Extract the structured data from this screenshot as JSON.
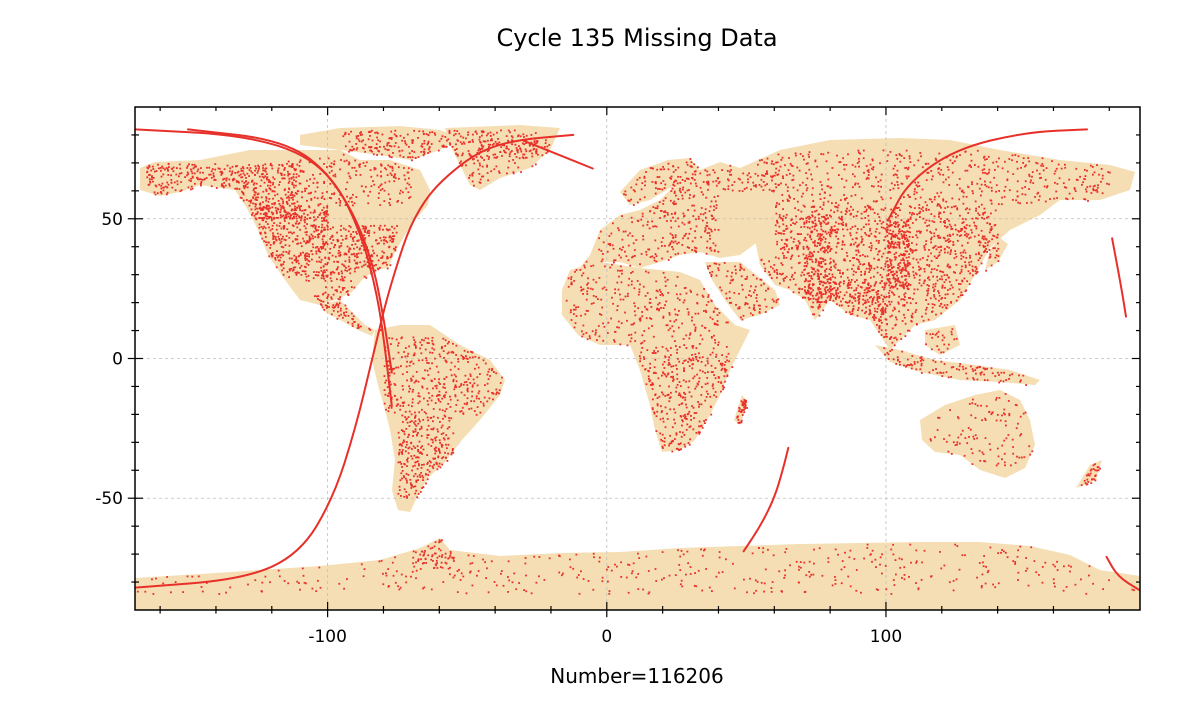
{
  "title": "Cycle 135 Missing Data",
  "footer": "Number=116206",
  "colors": {
    "land": "#f5deb3",
    "missing": "#e8302a",
    "grid": "#bdbdbd",
    "frame": "#000000"
  },
  "chart_data": {
    "type": "scatter",
    "projection": "equirectangular",
    "xlim": [
      -169,
      191
    ],
    "ylim": [
      -90,
      90
    ],
    "x_ticks": [
      -100,
      0,
      100
    ],
    "y_ticks": [
      50,
      0,
      -50
    ],
    "x_tick_labels": [
      "-100",
      "0",
      "100"
    ],
    "y_tick_labels": [
      "50",
      "0",
      "-50"
    ],
    "grid": true,
    "background_layer": "land",
    "series": [
      {
        "kind": "dense-regions",
        "regions": [
          {
            "lon": [
              -165,
              -110
            ],
            "lat": [
              50,
              70
            ],
            "n": 500
          },
          {
            "lon": [
              -125,
              -100
            ],
            "lat": [
              28,
              55
            ],
            "n": 420
          },
          {
            "lon": [
              -100,
              -75
            ],
            "lat": [
              28,
              48
            ],
            "n": 260
          },
          {
            "lon": [
              -115,
              -70
            ],
            "lat": [
              55,
              72
            ],
            "n": 200
          },
          {
            "lon": [
              -95,
              -25
            ],
            "lat": [
              72,
              82
            ],
            "n": 300
          },
          {
            "lon": [
              -55,
              -20
            ],
            "lat": [
              62,
              80
            ],
            "n": 120
          },
          {
            "lon": [
              -105,
              -80
            ],
            "lat": [
              10,
              26
            ],
            "n": 90
          },
          {
            "lon": [
              -80,
              -36
            ],
            "lat": [
              -20,
              8
            ],
            "n": 360
          },
          {
            "lon": [
              -75,
              -55
            ],
            "lat": [
              -50,
              -20
            ],
            "n": 260
          },
          {
            "lon": [
              -15,
              40
            ],
            "lat": [
              5,
              36
            ],
            "n": 300
          },
          {
            "lon": [
              10,
              45
            ],
            "lat": [
              -34,
              5
            ],
            "n": 340
          },
          {
            "lon": [
              42,
              50
            ],
            "lat": [
              -25,
              -12
            ],
            "n": 40
          },
          {
            "lon": [
              -10,
              40
            ],
            "lat": [
              36,
              60
            ],
            "n": 240
          },
          {
            "lon": [
              5,
              60
            ],
            "lat": [
              60,
              72
            ],
            "n": 180
          },
          {
            "lon": [
              35,
              60
            ],
            "lat": [
              12,
              36
            ],
            "n": 120
          },
          {
            "lon": [
              60,
              140
            ],
            "lat": [
              20,
              55
            ],
            "n": 1100
          },
          {
            "lon": [
              70,
              80
            ],
            "lat": [
              22,
              52
            ],
            "n": 180
          },
          {
            "lon": [
              100,
              108
            ],
            "lat": [
              25,
              50
            ],
            "n": 180
          },
          {
            "lon": [
              60,
              180
            ],
            "lat": [
              55,
              75
            ],
            "n": 500
          },
          {
            "lon": [
              70,
              100
            ],
            "lat": [
              8,
              28
            ],
            "n": 200
          },
          {
            "lon": [
              95,
              150
            ],
            "lat": [
              -10,
              20
            ],
            "n": 220
          },
          {
            "lon": [
              115,
              153
            ],
            "lat": [
              -38,
              -12
            ],
            "n": 110
          },
          {
            "lon": [
              166,
              178
            ],
            "lat": [
              -46,
              -35
            ],
            "n": 30
          },
          {
            "lon": [
              -169,
              191
            ],
            "lat": [
              -84,
              -64
            ],
            "n": 420
          },
          {
            "lon": [
              -70,
              -55
            ],
            "lat": [
              -75,
              -63
            ],
            "n": 60
          }
        ]
      },
      {
        "kind": "tracks",
        "tracks": [
          {
            "points": [
              [
                -169,
                82
              ],
              [
                -130,
                80
              ],
              [
                -105,
                72
              ],
              [
                -92,
                55
              ],
              [
                -84,
                35
              ],
              [
                -80,
                15
              ],
              [
                -77,
                -5
              ]
            ]
          },
          {
            "points": [
              [
                -150,
                82
              ],
              [
                -115,
                78
              ],
              [
                -98,
                65
              ],
              [
                -88,
                45
              ],
              [
                -82,
                22
              ],
              [
                -79,
                0
              ],
              [
                -77,
                -17
              ]
            ]
          },
          {
            "points": [
              [
                -169,
                -82
              ],
              [
                -130,
                -79
              ],
              [
                -110,
                -70
              ],
              [
                -98,
                -50
              ],
              [
                -90,
                -25
              ],
              [
                -84,
                0
              ],
              [
                -78,
                25
              ],
              [
                -68,
                55
              ],
              [
                -50,
                72
              ],
              [
                -35,
                78
              ],
              [
                -12,
                80
              ]
            ]
          },
          {
            "points": [
              [
                -30,
                78
              ],
              [
                -20,
                74
              ],
              [
                -5,
                68
              ]
            ]
          },
          {
            "points": [
              [
                101,
                50
              ],
              [
                108,
                63
              ],
              [
                125,
                75
              ],
              [
                150,
                81
              ],
              [
                172,
                82
              ]
            ]
          },
          {
            "points": [
              [
                49,
                -69
              ],
              [
                55,
                -60
              ],
              [
                60,
                -50
              ],
              [
                63,
                -40
              ],
              [
                65,
                -32
              ]
            ]
          },
          {
            "points": [
              [
                179,
                -71
              ],
              [
                183,
                -78
              ],
              [
                191,
                -83
              ]
            ]
          },
          {
            "points": [
              [
                181,
                43
              ],
              [
                184,
                27
              ],
              [
                186,
                15
              ]
            ]
          }
        ]
      }
    ]
  }
}
